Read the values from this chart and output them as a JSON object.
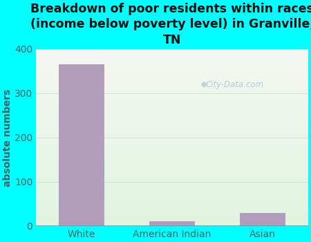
{
  "categories": [
    "White",
    "American Indian",
    "Asian"
  ],
  "values": [
    365,
    11,
    30
  ],
  "bar_color": "#b39dbd",
  "title": "Breakdown of poor residents within races\n(income below poverty level) in Granville,\nTN",
  "ylabel": "absolute numbers",
  "ylim": [
    0,
    400
  ],
  "yticks": [
    0,
    100,
    200,
    300,
    400
  ],
  "title_fontsize": 12.5,
  "label_fontsize": 10,
  "tick_fontsize": 10,
  "background_outer": "#00ffff",
  "plot_bg_top": "#f5f5f0",
  "plot_bg_bottom": "#e8f5e8",
  "watermark_text": "City-Data.com",
  "bar_width": 0.5,
  "title_color": "#111111",
  "tick_color": "#336666",
  "ylabel_color": "#336666"
}
